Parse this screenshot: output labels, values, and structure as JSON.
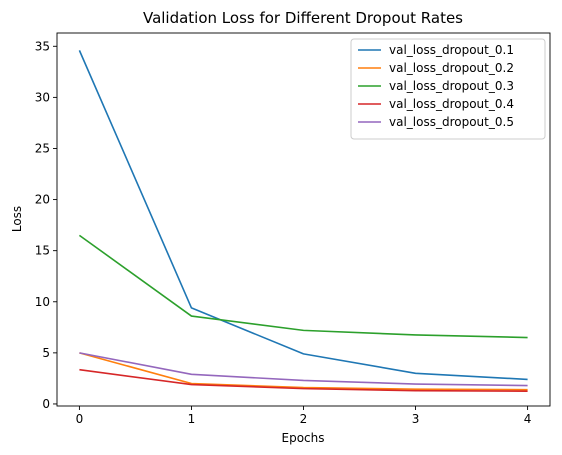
{
  "chart_data": {
    "type": "line",
    "title": "Validation Loss for Different Dropout Rates",
    "xlabel": "Epochs",
    "ylabel": "Loss",
    "x": [
      0,
      1,
      2,
      3,
      4
    ],
    "xticks": [
      "0",
      "1",
      "2",
      "3",
      "4"
    ],
    "yticks": [
      "0",
      "5",
      "10",
      "15",
      "20",
      "25",
      "30",
      "35"
    ],
    "xlim": [
      -0.2,
      4.2
    ],
    "ylim": [
      -0.2,
      36.3
    ],
    "grid": false,
    "legend_position": "top-right",
    "series": [
      {
        "name": "val_loss_dropout_0.1",
        "color": "#1f77b4",
        "values": [
          34.6,
          9.4,
          4.9,
          3.0,
          2.4
        ]
      },
      {
        "name": "val_loss_dropout_0.2",
        "color": "#ff7f0e",
        "values": [
          5.0,
          2.0,
          1.6,
          1.45,
          1.4
        ]
      },
      {
        "name": "val_loss_dropout_0.3",
        "color": "#2ca02c",
        "values": [
          16.5,
          8.6,
          7.2,
          6.75,
          6.5
        ]
      },
      {
        "name": "val_loss_dropout_0.4",
        "color": "#d62728",
        "values": [
          3.35,
          1.9,
          1.5,
          1.3,
          1.25
        ]
      },
      {
        "name": "val_loss_dropout_0.5",
        "color": "#9467bd",
        "values": [
          5.0,
          2.9,
          2.3,
          1.95,
          1.8
        ]
      }
    ]
  }
}
